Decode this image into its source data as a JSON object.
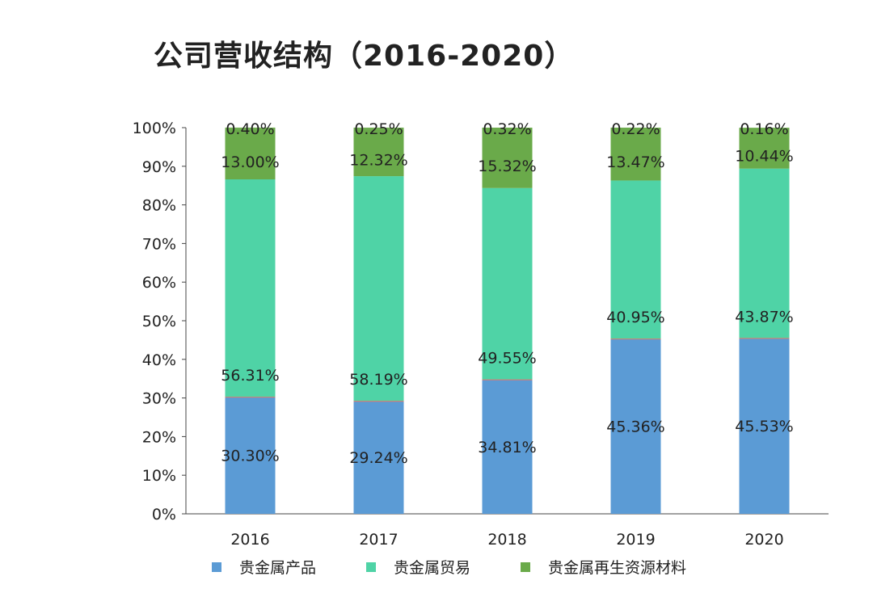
{
  "chart_data": {
    "type": "bar",
    "stacked": true,
    "title": "公司营收结构（2016-2020）",
    "xlabel": "",
    "ylabel": "",
    "ylim": [
      0,
      100
    ],
    "yticks": [
      "0%",
      "10%",
      "20%",
      "30%",
      "40%",
      "50%",
      "60%",
      "70%",
      "80%",
      "90%",
      "100%"
    ],
    "categories": [
      "2016",
      "2017",
      "2018",
      "2019",
      "2020"
    ],
    "series": [
      {
        "name": "贵金属产品",
        "color": "#5b9bd5",
        "values": [
          30.3,
          29.24,
          34.81,
          45.36,
          45.53
        ],
        "labels": [
          "30.30%",
          "29.24%",
          "34.81%",
          "45.36%",
          "45.53%"
        ]
      },
      {
        "name": "贵金属贸易",
        "color": "#4fd3a6",
        "values": [
          56.31,
          58.19,
          49.55,
          40.95,
          43.87
        ],
        "labels": [
          "56.31%",
          "58.19%",
          "49.55%",
          "40.95%",
          "43.87%"
        ]
      },
      {
        "name": "贵金属再生资源材料",
        "color": "#6aaa4a",
        "values": [
          13.0,
          12.32,
          15.32,
          13.47,
          10.44
        ],
        "labels": [
          "13.00%",
          "12.32%",
          "15.32%",
          "13.47%",
          "10.44%"
        ]
      },
      {
        "name": "",
        "color": "#6aaa4a",
        "values": [
          0.4,
          0.25,
          0.32,
          0.22,
          0.16
        ],
        "labels": [
          "0.40%",
          "0.25%",
          "0.32%",
          "0.22%",
          "0.16%"
        ]
      }
    ],
    "legend": "bottom",
    "grid": false
  }
}
